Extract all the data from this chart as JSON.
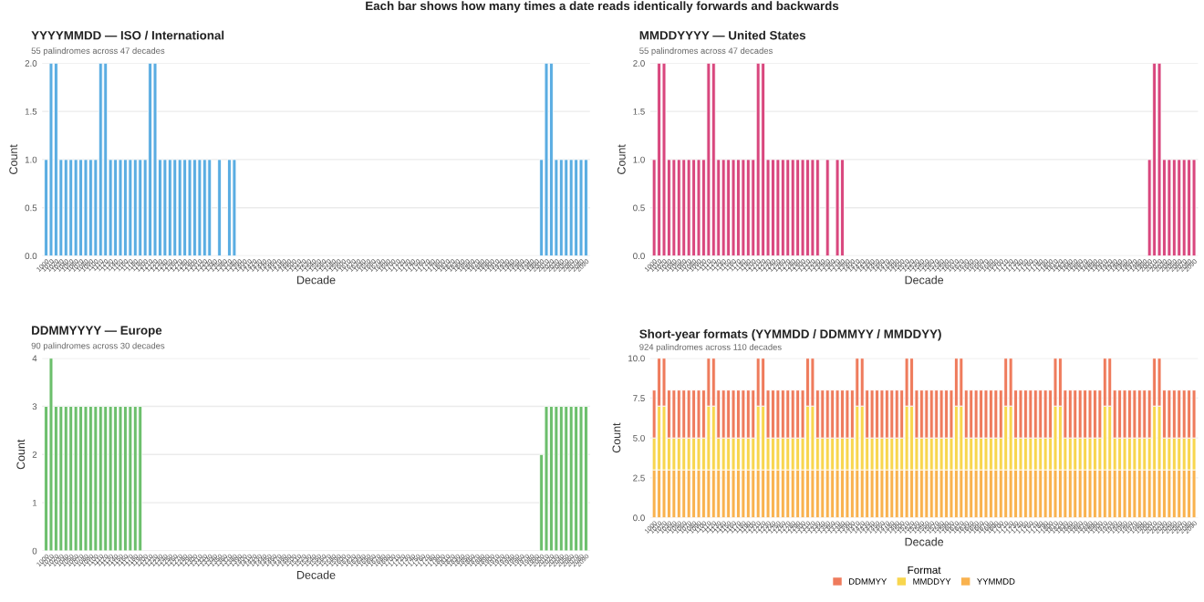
{
  "chart_data": [
    {
      "type": "bar",
      "title": "YYYYMMDD — ISO / International",
      "subtitle": "55 palindromes across 47 decades",
      "xlabel": "Decade",
      "ylabel": "Count",
      "annotations": [
        "Each bar shows how many times a date reads identically forwards and backwards"
      ],
      "categories": [
        "1000",
        "1010",
        "1020",
        "1030",
        "1040",
        "1050",
        "1060",
        "1070",
        "1080",
        "1090",
        "1100",
        "1110",
        "1120",
        "1130",
        "1140",
        "1150",
        "1160",
        "1170",
        "1180",
        "1190",
        "1200",
        "1210",
        "1220",
        "1230",
        "1240",
        "1250",
        "1260",
        "1270",
        "1280",
        "1290",
        "1300",
        "1310",
        "1320",
        "1330",
        "1340",
        "1350",
        "1360",
        "1370",
        "1380",
        "1390",
        "1400",
        "1410",
        "1420",
        "1430",
        "1440",
        "1450",
        "1460",
        "1470",
        "1480",
        "1490",
        "1500",
        "1510",
        "1520",
        "1530",
        "1540",
        "1550",
        "1560",
        "1570",
        "1580",
        "1590",
        "1600",
        "1610",
        "1620",
        "1630",
        "1640",
        "1650",
        "1660",
        "1670",
        "1680",
        "1690",
        "1700",
        "1710",
        "1720",
        "1730",
        "1740",
        "1750",
        "1760",
        "1770",
        "1780",
        "1790",
        "1800",
        "1810",
        "1820",
        "1830",
        "1840",
        "1850",
        "1860",
        "1870",
        "1880",
        "1890",
        "1900",
        "1910",
        "1920",
        "1930",
        "1940",
        "1950",
        "1960",
        "1970",
        "1980",
        "1990",
        "2000",
        "2010",
        "2020",
        "2030",
        "2040",
        "2050",
        "2060",
        "2070",
        "2080",
        "2090"
      ],
      "series": [
        {
          "color": "#5aade2",
          "values": [
            1,
            2,
            2,
            1,
            1,
            1,
            1,
            1,
            1,
            1,
            1,
            2,
            2,
            1,
            1,
            1,
            1,
            1,
            1,
            1,
            1,
            2,
            2,
            1,
            1,
            1,
            1,
            1,
            1,
            1,
            1,
            1,
            1,
            1,
            null,
            1,
            null,
            1,
            1,
            null,
            null,
            null,
            null,
            null,
            null,
            null,
            null,
            null,
            null,
            null,
            null,
            null,
            null,
            null,
            null,
            null,
            null,
            null,
            null,
            null,
            null,
            null,
            null,
            null,
            null,
            null,
            null,
            null,
            null,
            null,
            null,
            null,
            null,
            null,
            null,
            null,
            null,
            null,
            null,
            null,
            null,
            null,
            null,
            null,
            null,
            null,
            null,
            null,
            null,
            null,
            null,
            null,
            null,
            null,
            null,
            null,
            null,
            null,
            null,
            null,
            1,
            2,
            2,
            1,
            1,
            1,
            1,
            1,
            1,
            1
          ]
        }
      ],
      "ylim": [
        0,
        2
      ],
      "yticks": [
        {
          "value": 0,
          "label": "0.0"
        },
        {
          "value": 0.5,
          "label": "0.5"
        },
        {
          "value": 1,
          "label": "1.0"
        },
        {
          "value": 1.5,
          "label": "1.5"
        },
        {
          "value": 2,
          "label": "2.0"
        }
      ],
      "grid": "y",
      "legend": false
    },
    {
      "type": "bar",
      "title": "MMDDYYYY — United States",
      "subtitle": "55 palindromes across 47 decades",
      "xlabel": "Decade",
      "ylabel": "Count",
      "categories": [
        "1000",
        "1010",
        "1020",
        "1030",
        "1040",
        "1050",
        "1060",
        "1070",
        "1080",
        "1090",
        "1100",
        "1110",
        "1120",
        "1130",
        "1140",
        "1150",
        "1160",
        "1170",
        "1180",
        "1190",
        "1200",
        "1210",
        "1220",
        "1230",
        "1240",
        "1250",
        "1260",
        "1270",
        "1280",
        "1290",
        "1300",
        "1310",
        "1320",
        "1330",
        "1340",
        "1350",
        "1360",
        "1370",
        "1380",
        "1390",
        "1400",
        "1410",
        "1420",
        "1430",
        "1440",
        "1450",
        "1460",
        "1470",
        "1480",
        "1490",
        "1500",
        "1510",
        "1520",
        "1530",
        "1540",
        "1550",
        "1560",
        "1570",
        "1580",
        "1590",
        "1600",
        "1610",
        "1620",
        "1630",
        "1640",
        "1650",
        "1660",
        "1670",
        "1680",
        "1690",
        "1700",
        "1710",
        "1720",
        "1730",
        "1740",
        "1750",
        "1760",
        "1770",
        "1780",
        "1790",
        "1800",
        "1810",
        "1820",
        "1830",
        "1840",
        "1850",
        "1860",
        "1870",
        "1880",
        "1890",
        "1900",
        "1910",
        "1920",
        "1930",
        "1940",
        "1950",
        "1960",
        "1970",
        "1980",
        "1990",
        "2000",
        "2010",
        "2020",
        "2030",
        "2040",
        "2050",
        "2060",
        "2070",
        "2080",
        "2090"
      ],
      "series": [
        {
          "color": "#d9477e",
          "values": [
            1,
            2,
            2,
            1,
            1,
            1,
            1,
            1,
            1,
            1,
            1,
            2,
            2,
            1,
            1,
            1,
            1,
            1,
            1,
            1,
            1,
            2,
            2,
            1,
            1,
            1,
            1,
            1,
            1,
            1,
            1,
            1,
            1,
            1,
            null,
            1,
            null,
            1,
            1,
            null,
            null,
            null,
            null,
            null,
            null,
            null,
            null,
            null,
            null,
            null,
            null,
            null,
            null,
            null,
            null,
            null,
            null,
            null,
            null,
            null,
            null,
            null,
            null,
            null,
            null,
            null,
            null,
            null,
            null,
            null,
            null,
            null,
            null,
            null,
            null,
            null,
            null,
            null,
            null,
            null,
            null,
            null,
            null,
            null,
            null,
            null,
            null,
            null,
            null,
            null,
            null,
            null,
            null,
            null,
            null,
            null,
            null,
            null,
            null,
            null,
            1,
            2,
            2,
            1,
            1,
            1,
            1,
            1,
            1,
            1
          ]
        }
      ],
      "ylim": [
        0,
        2
      ],
      "yticks": [
        {
          "value": 0,
          "label": "0.0"
        },
        {
          "value": 0.5,
          "label": "0.5"
        },
        {
          "value": 1,
          "label": "1.0"
        },
        {
          "value": 1.5,
          "label": "1.5"
        },
        {
          "value": 2,
          "label": "2.0"
        }
      ],
      "grid": "y",
      "legend": false
    },
    {
      "type": "bar",
      "title": "DDMMYYYY — Europe",
      "subtitle": "90 palindromes across 30 decades",
      "xlabel": "Decade",
      "ylabel": "Count",
      "categories": [
        "1000",
        "1010",
        "1020",
        "1030",
        "1040",
        "1050",
        "1060",
        "1070",
        "1080",
        "1090",
        "1100",
        "1110",
        "1120",
        "1130",
        "1140",
        "1150",
        "1160",
        "1170",
        "1180",
        "1190",
        "1200",
        "1210",
        "1220",
        "1230",
        "1240",
        "1250",
        "1260",
        "1270",
        "1280",
        "1290",
        "1300",
        "1310",
        "1320",
        "1330",
        "1340",
        "1350",
        "1360",
        "1370",
        "1380",
        "1390",
        "1400",
        "1410",
        "1420",
        "1430",
        "1440",
        "1450",
        "1460",
        "1470",
        "1480",
        "1490",
        "1500",
        "1510",
        "1520",
        "1530",
        "1540",
        "1550",
        "1560",
        "1570",
        "1580",
        "1590",
        "1600",
        "1610",
        "1620",
        "1630",
        "1640",
        "1650",
        "1660",
        "1670",
        "1680",
        "1690",
        "1700",
        "1710",
        "1720",
        "1730",
        "1740",
        "1750",
        "1760",
        "1770",
        "1780",
        "1790",
        "1800",
        "1810",
        "1820",
        "1830",
        "1840",
        "1850",
        "1860",
        "1870",
        "1880",
        "1890",
        "1900",
        "1910",
        "1920",
        "1930",
        "1940",
        "1950",
        "1960",
        "1970",
        "1980",
        "1990",
        "2000",
        "2010",
        "2020",
        "2030",
        "2040",
        "2050",
        "2060",
        "2070",
        "2080",
        "2090"
      ],
      "series": [
        {
          "color": "#6cbf6c",
          "values": [
            3,
            4,
            3,
            3,
            3,
            3,
            3,
            3,
            3,
            3,
            3,
            3,
            3,
            3,
            3,
            3,
            3,
            3,
            3,
            3,
            null,
            null,
            null,
            null,
            null,
            null,
            null,
            null,
            null,
            null,
            null,
            null,
            null,
            null,
            null,
            null,
            null,
            null,
            null,
            null,
            null,
            null,
            null,
            null,
            null,
            null,
            null,
            null,
            null,
            null,
            null,
            null,
            null,
            null,
            null,
            null,
            null,
            null,
            null,
            null,
            null,
            null,
            null,
            null,
            null,
            null,
            null,
            null,
            null,
            null,
            null,
            null,
            null,
            null,
            null,
            null,
            null,
            null,
            null,
            null,
            null,
            null,
            null,
            null,
            null,
            null,
            null,
            null,
            null,
            null,
            null,
            null,
            null,
            null,
            null,
            null,
            null,
            null,
            null,
            null,
            2,
            3,
            3,
            3,
            3,
            3,
            3,
            3,
            3,
            3
          ]
        }
      ],
      "ylim": [
        0,
        4
      ],
      "yticks": [
        0,
        1,
        2,
        3,
        4
      ],
      "grid": "y",
      "legend": false
    },
    {
      "type": "bar",
      "title": "Short-year formats (YYMMDD / DDMMYY / MMDDYY)",
      "subtitle": "924 palindromes across 110 decades",
      "xlabel": "Decade",
      "ylabel": "Count",
      "legend_title": "Format",
      "categories": [
        "1000",
        "1010",
        "1020",
        "1030",
        "1040",
        "1050",
        "1060",
        "1070",
        "1080",
        "1090",
        "1100",
        "1110",
        "1120",
        "1130",
        "1140",
        "1150",
        "1160",
        "1170",
        "1180",
        "1190",
        "1200",
        "1210",
        "1220",
        "1230",
        "1240",
        "1250",
        "1260",
        "1270",
        "1280",
        "1290",
        "1300",
        "1310",
        "1320",
        "1330",
        "1340",
        "1350",
        "1360",
        "1370",
        "1380",
        "1390",
        "1400",
        "1410",
        "1420",
        "1430",
        "1440",
        "1450",
        "1460",
        "1470",
        "1480",
        "1490",
        "1500",
        "1510",
        "1520",
        "1530",
        "1540",
        "1550",
        "1560",
        "1570",
        "1580",
        "1590",
        "1600",
        "1610",
        "1620",
        "1630",
        "1640",
        "1650",
        "1660",
        "1670",
        "1680",
        "1690",
        "1700",
        "1710",
        "1720",
        "1730",
        "1740",
        "1750",
        "1760",
        "1770",
        "1780",
        "1790",
        "1800",
        "1810",
        "1820",
        "1830",
        "1840",
        "1850",
        "1860",
        "1870",
        "1880",
        "1890",
        "1900",
        "1910",
        "1920",
        "1930",
        "1940",
        "1950",
        "1960",
        "1970",
        "1980",
        "1990",
        "2000",
        "2010",
        "2020",
        "2030",
        "2040",
        "2050",
        "2060",
        "2070",
        "2080",
        "2090"
      ],
      "stacked": true,
      "series": [
        {
          "name": "YYMMDD",
          "color": "#f9b24e",
          "values": [
            3,
            3,
            3,
            3,
            3,
            3,
            3,
            3,
            3,
            3,
            3,
            3,
            3,
            3,
            3,
            3,
            3,
            3,
            3,
            3,
            3,
            3,
            3,
            3,
            3,
            3,
            3,
            3,
            3,
            3,
            3,
            3,
            3,
            3,
            3,
            3,
            3,
            3,
            3,
            3,
            3,
            3,
            3,
            3,
            3,
            3,
            3,
            3,
            3,
            3,
            3,
            3,
            3,
            3,
            3,
            3,
            3,
            3,
            3,
            3,
            3,
            3,
            3,
            3,
            3,
            3,
            3,
            3,
            3,
            3,
            3,
            3,
            3,
            3,
            3,
            3,
            3,
            3,
            3,
            3,
            3,
            3,
            3,
            3,
            3,
            3,
            3,
            3,
            3,
            3,
            3,
            3,
            3,
            3,
            3,
            3,
            3,
            3,
            3,
            3,
            3,
            3,
            3,
            3,
            3,
            3,
            3,
            3,
            3,
            3
          ]
        },
        {
          "name": "MMDDYY",
          "color": "#f8d64e",
          "values": [
            2,
            4,
            4,
            2,
            2,
            2,
            2,
            2,
            2,
            2,
            2,
            4,
            4,
            2,
            2,
            2,
            2,
            2,
            2,
            2,
            2,
            4,
            4,
            2,
            2,
            2,
            2,
            2,
            2,
            2,
            2,
            4,
            4,
            2,
            2,
            2,
            2,
            2,
            2,
            2,
            2,
            4,
            4,
            2,
            2,
            2,
            2,
            2,
            2,
            2,
            2,
            4,
            4,
            2,
            2,
            2,
            2,
            2,
            2,
            2,
            2,
            4,
            4,
            2,
            2,
            2,
            2,
            2,
            2,
            2,
            2,
            4,
            4,
            2,
            2,
            2,
            2,
            2,
            2,
            2,
            2,
            4,
            4,
            2,
            2,
            2,
            2,
            2,
            2,
            2,
            2,
            4,
            4,
            2,
            2,
            2,
            2,
            2,
            2,
            2,
            2,
            4,
            4,
            2,
            2,
            2,
            2,
            2,
            2,
            2
          ]
        },
        {
          "name": "DDMMYY",
          "color": "#ef7b5c",
          "values": [
            3,
            3,
            3,
            3,
            3,
            3,
            3,
            3,
            3,
            3,
            3,
            3,
            3,
            3,
            3,
            3,
            3,
            3,
            3,
            3,
            3,
            3,
            3,
            3,
            3,
            3,
            3,
            3,
            3,
            3,
            3,
            3,
            3,
            3,
            3,
            3,
            3,
            3,
            3,
            3,
            3,
            3,
            3,
            3,
            3,
            3,
            3,
            3,
            3,
            3,
            3,
            3,
            3,
            3,
            3,
            3,
            3,
            3,
            3,
            3,
            3,
            3,
            3,
            3,
            3,
            3,
            3,
            3,
            3,
            3,
            3,
            3,
            3,
            3,
            3,
            3,
            3,
            3,
            3,
            3,
            3,
            3,
            3,
            3,
            3,
            3,
            3,
            3,
            3,
            3,
            3,
            3,
            3,
            3,
            3,
            3,
            3,
            3,
            3,
            3,
            3,
            3,
            3,
            3,
            3,
            3,
            3,
            3,
            3,
            3
          ]
        }
      ],
      "ylim": [
        0,
        10
      ],
      "yticks": [
        {
          "value": 0,
          "label": "0.0"
        },
        {
          "value": 2.5,
          "label": "2.5"
        },
        {
          "value": 5,
          "label": "5.0"
        },
        {
          "value": 7.5,
          "label": "7.5"
        },
        {
          "value": 10,
          "label": "10.0"
        }
      ],
      "grid": "y",
      "legend": "bottom"
    }
  ]
}
